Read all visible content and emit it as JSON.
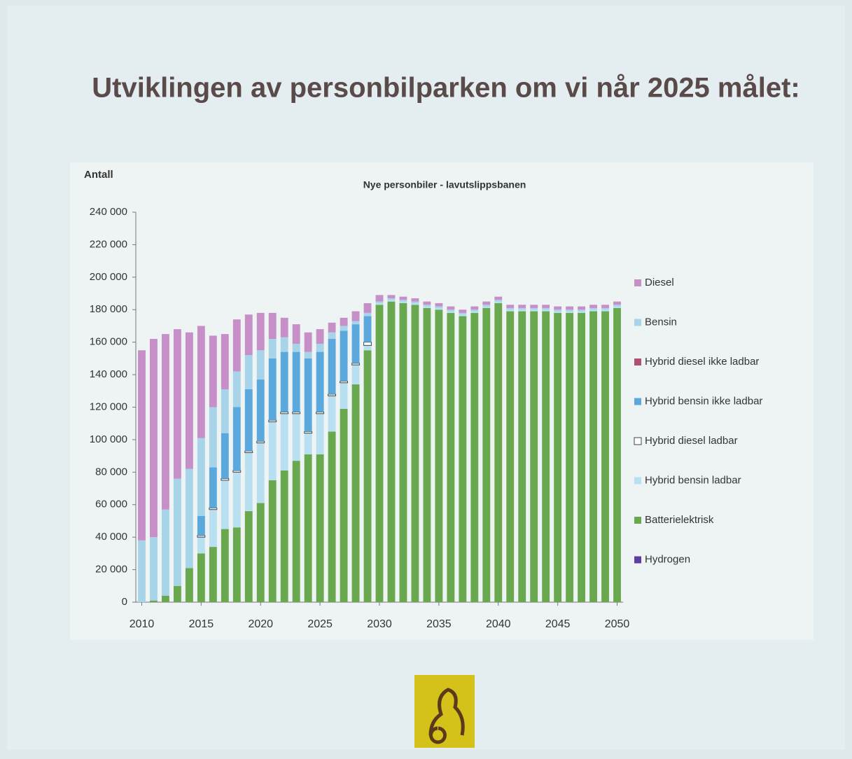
{
  "slide_title": "Utviklingen av personbilparken om vi når 2025 målet:",
  "chart_data": {
    "type": "stacked-bar",
    "title": "Nye personbiler - lavutslippsbanen",
    "y_label": "Antall",
    "x": [
      2010,
      2011,
      2012,
      2013,
      2014,
      2015,
      2016,
      2017,
      2018,
      2019,
      2020,
      2021,
      2022,
      2023,
      2024,
      2025,
      2026,
      2027,
      2028,
      2029,
      2030,
      2031,
      2032,
      2033,
      2034,
      2035,
      2036,
      2037,
      2038,
      2039,
      2040,
      2041,
      2042,
      2043,
      2044,
      2045,
      2046,
      2047,
      2048,
      2049,
      2050
    ],
    "xlim": [
      2009.5,
      2050.5
    ],
    "xticks": [
      2010,
      2015,
      2020,
      2025,
      2030,
      2035,
      2040,
      2045,
      2050
    ],
    "ylim": [
      0,
      240000
    ],
    "yticks": [
      {
        "value": 0,
        "label": "0"
      },
      {
        "value": 20000,
        "label": "20 000"
      },
      {
        "value": 40000,
        "label": "40 000"
      },
      {
        "value": 60000,
        "label": "60 000"
      },
      {
        "value": 80000,
        "label": "80 000"
      },
      {
        "value": 100000,
        "label": "100 000"
      },
      {
        "value": 120000,
        "label": "120 000"
      },
      {
        "value": 140000,
        "label": "140 000"
      },
      {
        "value": 160000,
        "label": "160 000"
      },
      {
        "value": 180000,
        "label": "180 000"
      },
      {
        "value": 200000,
        "label": "200 000"
      },
      {
        "value": 220000,
        "label": "220 000"
      },
      {
        "value": 240000,
        "label": "240 000"
      }
    ],
    "series": [
      {
        "name": "Hydrogen",
        "color": "#5b3fa0",
        "values": [
          0,
          0,
          0,
          0,
          0,
          0,
          0,
          0,
          0,
          0,
          0,
          0,
          0,
          0,
          0,
          0,
          0,
          0,
          0,
          0,
          0,
          0,
          0,
          0,
          0,
          0,
          0,
          0,
          0,
          0,
          0,
          0,
          0,
          0,
          0,
          0,
          0,
          0,
          0,
          0,
          0
        ]
      },
      {
        "name": "Batterielektrisk",
        "color": "#6aa84f",
        "values": [
          0,
          1000,
          4000,
          10000,
          21000,
          30000,
          34000,
          45000,
          46000,
          56000,
          61000,
          75000,
          81000,
          87000,
          91000,
          91000,
          105000,
          119000,
          134000,
          155000,
          183000,
          185000,
          184000,
          183000,
          181000,
          180000,
          178000,
          176000,
          178000,
          181000,
          184000,
          179000,
          179000,
          179000,
          179000,
          178000,
          178000,
          178000,
          179000,
          179000,
          181000
        ]
      },
      {
        "name": "Hybrid bensin ladbar",
        "color": "#b8e0f0",
        "values": [
          0,
          0,
          0,
          0,
          0,
          10000,
          23000,
          30000,
          34000,
          36000,
          37000,
          36000,
          35000,
          29000,
          13000,
          25000,
          22000,
          16000,
          12000,
          3000,
          1000,
          1000,
          1000,
          1000,
          1000,
          1000,
          1000,
          1000,
          1000,
          1000,
          1000,
          1000,
          1000,
          1000,
          1000,
          1000,
          1000,
          1000,
          1000,
          1000,
          1000
        ]
      },
      {
        "name": "Hybrid diesel ladbar",
        "color": "#ffffff",
        "values": [
          0,
          0,
          0,
          0,
          0,
          1000,
          1000,
          1000,
          1000,
          1000,
          1000,
          1000,
          1000,
          1000,
          1000,
          1000,
          1000,
          1000,
          1000,
          2000,
          0,
          0,
          0,
          0,
          0,
          0,
          0,
          0,
          0,
          0,
          0,
          0,
          0,
          0,
          0,
          0,
          0,
          0,
          0,
          0,
          0
        ]
      },
      {
        "name": "Hybrid bensin ikke ladbar",
        "color": "#5aa8dc",
        "values": [
          0,
          0,
          0,
          0,
          0,
          12000,
          25000,
          28000,
          39000,
          38000,
          38000,
          38000,
          37000,
          37000,
          45000,
          37000,
          34000,
          31000,
          24000,
          16000,
          0,
          0,
          0,
          0,
          0,
          0,
          0,
          0,
          0,
          0,
          0,
          0,
          0,
          0,
          0,
          0,
          0,
          0,
          0,
          0,
          0
        ]
      },
      {
        "name": "Hybrid diesel ikke ladbar",
        "color": "#b05070",
        "values": [
          0,
          0,
          0,
          0,
          0,
          0,
          0,
          0,
          0,
          0,
          0,
          0,
          0,
          0,
          0,
          0,
          0,
          0,
          0,
          0,
          0,
          0,
          0,
          0,
          0,
          0,
          0,
          0,
          0,
          0,
          0,
          0,
          0,
          0,
          0,
          0,
          0,
          0,
          0,
          0,
          0
        ]
      },
      {
        "name": "Bensin",
        "color": "#a8d4ea",
        "values": [
          38000,
          39000,
          53000,
          66000,
          61000,
          48000,
          37000,
          27000,
          22000,
          21000,
          18000,
          12000,
          9000,
          5000,
          4000,
          5000,
          4000,
          3000,
          2000,
          2000,
          1000,
          1000,
          1000,
          1000,
          1000,
          1000,
          1000,
          1000,
          1000,
          1000,
          1000,
          1000,
          1000,
          1000,
          1000,
          1000,
          1000,
          1000,
          1000,
          1000,
          1000
        ]
      },
      {
        "name": "Diesel",
        "color": "#c78fc7",
        "values": [
          117000,
          122000,
          108000,
          92000,
          84000,
          69000,
          44000,
          34000,
          32000,
          25000,
          23000,
          16000,
          12000,
          12000,
          12000,
          9000,
          6000,
          5000,
          6000,
          6000,
          4000,
          2000,
          2000,
          2000,
          2000,
          2000,
          2000,
          2000,
          2000,
          2000,
          2000,
          2000,
          2000,
          2000,
          2000,
          2000,
          2000,
          2000,
          2000,
          2000,
          2000
        ]
      }
    ]
  }
}
